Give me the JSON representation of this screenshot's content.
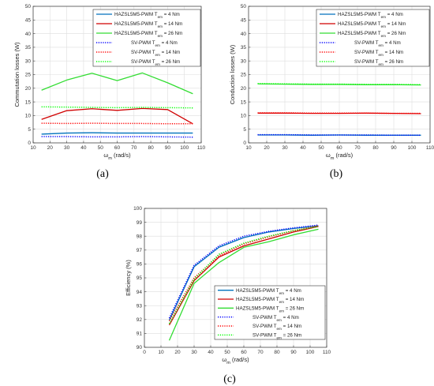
{
  "colors": {
    "blue": "#0000ff",
    "red": "#ff0000",
    "green": "#00ff00",
    "hazsl_blue": "#0072bd",
    "hazsl_red": "#d00000",
    "hazsl_green": "#33dd33"
  },
  "chart_data": [
    {
      "type": "line",
      "caption": "(a)",
      "xlabel": "ω_m (rad/s)",
      "ylabel": "Commutation losses (W)",
      "xlim": [
        10,
        110
      ],
      "ylim": [
        0,
        50
      ],
      "xticks": [
        10,
        20,
        30,
        40,
        50,
        60,
        70,
        80,
        90,
        100,
        110
      ],
      "yticks": [
        0,
        5,
        10,
        15,
        20,
        25,
        30,
        35,
        40,
        45,
        50
      ],
      "grid": true,
      "legend": "top-right",
      "series": [
        {
          "name": "HAZSL5M5-PWM T_em = 4 Nm",
          "style": "solid",
          "color": "hazsl_blue",
          "x": [
            15,
            30,
            45,
            60,
            75,
            90,
            105
          ],
          "y": [
            3.2,
            3.6,
            3.7,
            3.6,
            3.6,
            3.6,
            3.6
          ]
        },
        {
          "name": "HAZSL5M5-PWM T_em = 14 Nm",
          "style": "solid",
          "color": "hazsl_red",
          "x": [
            15,
            30,
            45,
            60,
            75,
            90,
            105
          ],
          "y": [
            8.6,
            11.8,
            12.5,
            11.9,
            12.6,
            12.2,
            7.0
          ]
        },
        {
          "name": "HAZSL5M5-PWM T_em = 26 Nm",
          "style": "solid",
          "color": "hazsl_green",
          "x": [
            15,
            30,
            45,
            60,
            75,
            90,
            105
          ],
          "y": [
            19.3,
            23.0,
            25.5,
            22.8,
            25.6,
            22.0,
            18.0
          ]
        },
        {
          "name": "SV-PWM T_em = 4 Nm",
          "style": "dotted",
          "color": "blue",
          "x": [
            15,
            30,
            45,
            60,
            75,
            90,
            105
          ],
          "y": [
            2.3,
            2.3,
            2.2,
            2.2,
            2.3,
            2.2,
            2.1
          ]
        },
        {
          "name": "SV-PWM T_em = 14 Nm",
          "style": "dotted",
          "color": "red",
          "x": [
            15,
            30,
            45,
            60,
            75,
            90,
            105
          ],
          "y": [
            7.2,
            7.1,
            7.2,
            7.1,
            7.1,
            7.0,
            7.0
          ]
        },
        {
          "name": "SV-PWM T_em = 26 Nm",
          "style": "dotted",
          "color": "green",
          "x": [
            15,
            30,
            45,
            60,
            75,
            90,
            105
          ],
          "y": [
            13.2,
            13.1,
            13.0,
            12.9,
            13.0,
            12.9,
            12.8
          ]
        }
      ]
    },
    {
      "type": "line",
      "caption": "(b)",
      "xlabel": "ω_m (rad/s)",
      "ylabel": "Conduction losses (W)",
      "xlim": [
        10,
        110
      ],
      "ylim": [
        0,
        50
      ],
      "xticks": [
        10,
        20,
        30,
        40,
        50,
        60,
        70,
        80,
        90,
        100,
        110
      ],
      "yticks": [
        0,
        5,
        10,
        15,
        20,
        25,
        30,
        35,
        40,
        45,
        50
      ],
      "grid": true,
      "legend": "top-right",
      "series": [
        {
          "name": "HAZSL5M5-PWM T_em = 4 Nm",
          "style": "solid",
          "color": "hazsl_blue",
          "x": [
            15,
            30,
            45,
            60,
            75,
            90,
            105
          ],
          "y": [
            2.9,
            2.9,
            2.8,
            2.9,
            2.8,
            2.8,
            2.8
          ]
        },
        {
          "name": "HAZSL5M5-PWM T_em = 14 Nm",
          "style": "solid",
          "color": "hazsl_red",
          "x": [
            15,
            30,
            45,
            60,
            75,
            90,
            105
          ],
          "y": [
            10.9,
            10.9,
            10.8,
            10.8,
            10.9,
            10.8,
            10.7
          ]
        },
        {
          "name": "HAZSL5M5-PWM T_em = 26 Nm",
          "style": "solid",
          "color": "hazsl_green",
          "x": [
            15,
            30,
            45,
            60,
            75,
            90,
            105
          ],
          "y": [
            21.6,
            21.5,
            21.4,
            21.4,
            21.3,
            21.3,
            21.2
          ]
        },
        {
          "name": "SV-PWM T_em = 4 Nm",
          "style": "dotted",
          "color": "blue",
          "x": [
            15,
            30,
            45,
            60,
            75,
            90,
            105
          ],
          "y": [
            3.0,
            3.0,
            2.9,
            2.9,
            2.9,
            2.8,
            2.8
          ]
        },
        {
          "name": "SV-PWM T_em = 14 Nm",
          "style": "dotted",
          "color": "red",
          "x": [
            15,
            30,
            45,
            60,
            75,
            90,
            105
          ],
          "y": [
            11.0,
            11.0,
            10.9,
            10.9,
            10.9,
            10.8,
            10.8
          ]
        },
        {
          "name": "SV-PWM T_em = 26 Nm",
          "style": "dotted",
          "color": "green",
          "x": [
            15,
            30,
            45,
            60,
            75,
            90,
            105
          ],
          "y": [
            21.7,
            21.6,
            21.5,
            21.5,
            21.4,
            21.4,
            21.3
          ]
        }
      ]
    },
    {
      "type": "line",
      "caption": "(c)",
      "xlabel": "ω_m (rad/s)",
      "ylabel": "Efficiency (%)",
      "xlim": [
        0,
        110
      ],
      "ylim": [
        90,
        100
      ],
      "xticks": [
        0,
        10,
        20,
        30,
        40,
        50,
        60,
        70,
        80,
        90,
        100,
        110
      ],
      "yticks": [
        90,
        91,
        92,
        93,
        94,
        95,
        96,
        97,
        98,
        99,
        100
      ],
      "grid": true,
      "legend": "bottom-right",
      "series": [
        {
          "name": "HAZSL5M5-PWM T_em = 4 Nm",
          "style": "solid",
          "color": "hazsl_blue",
          "x": [
            15,
            30,
            45,
            60,
            75,
            90,
            105
          ],
          "y": [
            91.95,
            95.8,
            97.2,
            97.9,
            98.3,
            98.55,
            98.75
          ]
        },
        {
          "name": "HAZSL5M5-PWM T_em = 14 Nm",
          "style": "solid",
          "color": "hazsl_red",
          "x": [
            15,
            30,
            45,
            60,
            75,
            90,
            105
          ],
          "y": [
            91.6,
            94.8,
            96.5,
            97.3,
            97.8,
            98.3,
            98.7
          ]
        },
        {
          "name": "HAZSL5M5-PWM T_em = 26 Nm",
          "style": "solid",
          "color": "hazsl_green",
          "x": [
            15,
            30,
            45,
            60,
            75,
            90,
            105
          ],
          "y": [
            90.5,
            94.6,
            96.1,
            97.2,
            97.6,
            98.1,
            98.5
          ]
        },
        {
          "name": "SV-PWM T_em = 4 Nm",
          "style": "dotted",
          "color": "blue",
          "x": [
            15,
            30,
            45,
            60,
            75,
            90,
            105
          ],
          "y": [
            92.1,
            95.9,
            97.3,
            98.0,
            98.35,
            98.6,
            98.8
          ]
        },
        {
          "name": "SV-PWM T_em = 14 Nm",
          "style": "dotted",
          "color": "red",
          "x": [
            15,
            30,
            45,
            60,
            75,
            90,
            105
          ],
          "y": [
            91.9,
            95.0,
            96.6,
            97.45,
            97.95,
            98.4,
            98.75
          ]
        },
        {
          "name": "SV-PWM T_em = 26 Nm",
          "style": "dotted",
          "color": "green",
          "x": [
            15,
            30,
            45,
            60,
            75,
            90,
            105
          ],
          "y": [
            91.7,
            94.9,
            96.7,
            97.5,
            98.0,
            98.4,
            98.7
          ]
        }
      ]
    }
  ]
}
